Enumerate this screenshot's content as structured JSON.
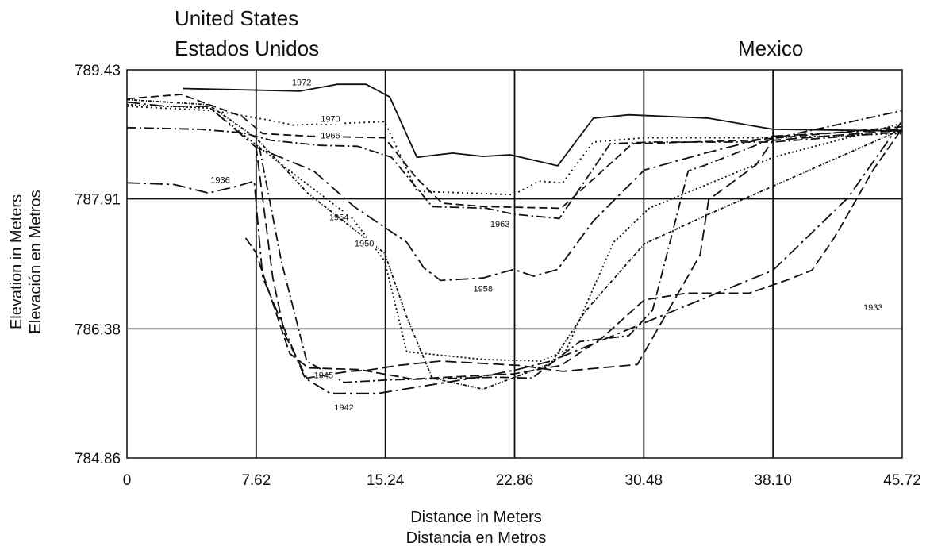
{
  "chart_data": {
    "type": "line",
    "title": "",
    "region_labels": {
      "left": [
        "United States",
        "Estados Unidos"
      ],
      "right": "Mexico"
    },
    "xlabel": [
      "Distance in Meters",
      "Distancia en Metros"
    ],
    "ylabel": [
      "Elevation in Meters",
      "Elevación en Metros"
    ],
    "xlim": [
      0,
      45.72
    ],
    "ylim": [
      784.86,
      789.43
    ],
    "x_ticks": [
      "0",
      "7.62",
      "15.24",
      "22.86",
      "30.48",
      "38.10",
      "45.72"
    ],
    "y_ticks": [
      "789.43",
      "787.91",
      "786.38",
      "784.86"
    ],
    "grid": true,
    "legend": "none (series labeled inline)",
    "series": [
      {
        "name": "1972",
        "dash": "solid",
        "label_at": [
          10.3,
          789.25
        ],
        "points": [
          [
            3.3,
            789.21
          ],
          [
            10.2,
            789.18
          ],
          [
            12.4,
            789.26
          ],
          [
            14.1,
            789.26
          ],
          [
            15.5,
            789.11
          ],
          [
            17.1,
            788.4
          ],
          [
            19.2,
            788.45
          ],
          [
            21.0,
            788.41
          ],
          [
            22.6,
            788.43
          ],
          [
            25.4,
            788.3
          ],
          [
            27.5,
            788.86
          ],
          [
            29.6,
            788.9
          ],
          [
            34.3,
            788.86
          ],
          [
            38.1,
            788.73
          ],
          [
            45.72,
            788.71
          ]
        ]
      },
      {
        "name": "1970",
        "dash": "2,4",
        "label_at": [
          12.0,
          788.82
        ],
        "points": [
          [
            0,
            789.0
          ],
          [
            5.1,
            788.95
          ],
          [
            8.3,
            788.84
          ],
          [
            9.8,
            788.78
          ],
          [
            12.7,
            788.8
          ],
          [
            15.2,
            788.82
          ],
          [
            17.1,
            788.0
          ],
          [
            20.1,
            787.98
          ],
          [
            22.8,
            787.96
          ],
          [
            24.3,
            788.12
          ],
          [
            25.7,
            788.1
          ],
          [
            27.5,
            788.58
          ],
          [
            30.5,
            788.63
          ],
          [
            38.1,
            788.63
          ],
          [
            45.72,
            788.68
          ]
        ]
      },
      {
        "name": "1966",
        "dash": "10,5",
        "label_at": [
          12.0,
          788.62
        ],
        "points": [
          [
            0,
            789.09
          ],
          [
            3.2,
            789.14
          ],
          [
            6.8,
            788.88
          ],
          [
            8.0,
            788.68
          ],
          [
            10.7,
            788.65
          ],
          [
            15.2,
            788.63
          ],
          [
            17.1,
            788.15
          ],
          [
            18.6,
            787.86
          ],
          [
            21.1,
            787.82
          ],
          [
            25.6,
            787.8
          ],
          [
            29.8,
            788.56
          ],
          [
            36.7,
            788.6
          ],
          [
            45.72,
            788.76
          ]
        ]
      },
      {
        "name": "1963",
        "dash": "12,4,2,4",
        "label_at": [
          22.0,
          787.58
        ],
        "points": [
          [
            0,
            788.75
          ],
          [
            4.3,
            788.73
          ],
          [
            6.8,
            788.69
          ],
          [
            8.5,
            788.6
          ],
          [
            11.4,
            788.54
          ],
          [
            13.6,
            788.53
          ],
          [
            15.6,
            788.4
          ],
          [
            18.0,
            787.82
          ],
          [
            21.2,
            787.8
          ],
          [
            22.8,
            787.73
          ],
          [
            25.5,
            787.68
          ],
          [
            28.5,
            788.56
          ],
          [
            31.0,
            788.58
          ],
          [
            38.1,
            788.58
          ],
          [
            45.72,
            788.7
          ]
        ]
      },
      {
        "name": "1958",
        "dash": "16,5,3,5",
        "label_at": [
          21.0,
          786.82
        ],
        "points": [
          [
            0,
            789.05
          ],
          [
            2.3,
            789.0
          ],
          [
            4.8,
            789.0
          ],
          [
            7.6,
            788.52
          ],
          [
            11.0,
            788.24
          ],
          [
            13.4,
            787.82
          ],
          [
            16.5,
            787.4
          ],
          [
            17.5,
            787.1
          ],
          [
            18.5,
            786.95
          ],
          [
            21.0,
            786.98
          ],
          [
            22.8,
            787.08
          ],
          [
            24.0,
            787.0
          ],
          [
            25.4,
            787.08
          ],
          [
            27.5,
            787.65
          ],
          [
            30.5,
            788.25
          ],
          [
            34.1,
            788.45
          ],
          [
            38.1,
            788.65
          ],
          [
            45.72,
            788.73
          ]
        ]
      },
      {
        "name": "1954",
        "dash": "2,3",
        "label_at": [
          12.5,
          787.66
        ],
        "points": [
          [
            0,
            789.02
          ],
          [
            4.9,
            788.98
          ],
          [
            7.6,
            788.55
          ],
          [
            10.0,
            788.18
          ],
          [
            13.3,
            787.68
          ],
          [
            15.2,
            787.18
          ],
          [
            16.5,
            786.11
          ],
          [
            21.0,
            786.02
          ],
          [
            24.4,
            786.0
          ],
          [
            25.9,
            786.13
          ],
          [
            28.7,
            787.4
          ],
          [
            30.8,
            787.8
          ],
          [
            38.1,
            788.4
          ],
          [
            45.72,
            788.8
          ]
        ]
      },
      {
        "name": "1950",
        "dash": "4,2,1,2",
        "label_at": [
          14.0,
          787.35
        ],
        "points": [
          [
            0,
            789.08
          ],
          [
            4.8,
            789.02
          ],
          [
            7.6,
            788.63
          ],
          [
            10.7,
            787.97
          ],
          [
            15.2,
            787.27
          ],
          [
            16.5,
            786.52
          ],
          [
            18.0,
            785.8
          ],
          [
            21.0,
            785.67
          ],
          [
            25.0,
            785.97
          ],
          [
            27.0,
            786.58
          ],
          [
            30.5,
            787.38
          ],
          [
            34.3,
            787.73
          ],
          [
            38.1,
            788.06
          ],
          [
            45.72,
            788.73
          ]
        ]
      },
      {
        "name": "1945",
        "dash": "12,4,2,4",
        "label_at": [
          11.6,
          785.8
        ],
        "points": [
          [
            7.8,
            788.53
          ],
          [
            9.1,
            787.18
          ],
          [
            10.6,
            786.0
          ],
          [
            12.8,
            785.75
          ],
          [
            15.5,
            785.78
          ],
          [
            21.9,
            785.81
          ],
          [
            23.9,
            785.8
          ],
          [
            26.7,
            786.23
          ],
          [
            29.6,
            786.3
          ],
          [
            31.0,
            786.6
          ],
          [
            33.1,
            788.24
          ],
          [
            34.0,
            788.3
          ],
          [
            38.1,
            788.62
          ],
          [
            45.72,
            788.95
          ]
        ]
      },
      {
        "name": "1942",
        "dash": "14,6",
        "label_at": [
          12.8,
          785.42
        ],
        "points": [
          [
            7.6,
            788.55
          ],
          [
            8.6,
            786.98
          ],
          [
            9.3,
            786.32
          ],
          [
            10.6,
            785.8
          ],
          [
            13.1,
            785.88
          ],
          [
            14.1,
            785.89
          ],
          [
            16.0,
            785.95
          ],
          [
            18.5,
            786.0
          ],
          [
            23.1,
            785.95
          ],
          [
            25.7,
            785.88
          ],
          [
            30.1,
            785.96
          ],
          [
            33.8,
            787.25
          ],
          [
            34.3,
            787.9
          ],
          [
            37.1,
            788.31
          ],
          [
            38.1,
            788.6
          ],
          [
            45.72,
            788.72
          ]
        ]
      },
      {
        "name": "1936",
        "dash": "16,5,3,5",
        "label_at": [
          5.5,
          788.1
        ],
        "points": [
          [
            0,
            788.1
          ],
          [
            2.8,
            788.08
          ],
          [
            4.8,
            787.98
          ],
          [
            6.5,
            788.06
          ],
          [
            7.5,
            788.12
          ],
          [
            8.0,
            786.99
          ],
          [
            10.5,
            785.8
          ],
          [
            12.0,
            785.62
          ],
          [
            14.8,
            785.62
          ],
          [
            21.0,
            785.82
          ],
          [
            23.0,
            785.9
          ],
          [
            25.0,
            786.0
          ],
          [
            30.5,
            786.45
          ],
          [
            38.1,
            787.07
          ],
          [
            42.5,
            787.92
          ],
          [
            45.72,
            788.83
          ]
        ]
      },
      {
        "name": "1933",
        "dash": "12,5",
        "label_at": [
          44.0,
          786.6
        ],
        "points": [
          [
            7.0,
            787.45
          ],
          [
            7.6,
            787.28
          ],
          [
            9.6,
            786.09
          ],
          [
            10.7,
            785.92
          ],
          [
            13.7,
            785.9
          ],
          [
            16.8,
            785.79
          ],
          [
            22.8,
            785.85
          ],
          [
            25.6,
            785.95
          ],
          [
            28.0,
            786.27
          ],
          [
            30.5,
            786.72
          ],
          [
            33.0,
            786.8
          ],
          [
            36.7,
            786.8
          ],
          [
            39.0,
            786.96
          ],
          [
            40.4,
            787.07
          ],
          [
            41.6,
            787.42
          ],
          [
            42.0,
            787.55
          ],
          [
            44.0,
            788.25
          ],
          [
            45.72,
            788.74
          ]
        ]
      }
    ]
  }
}
